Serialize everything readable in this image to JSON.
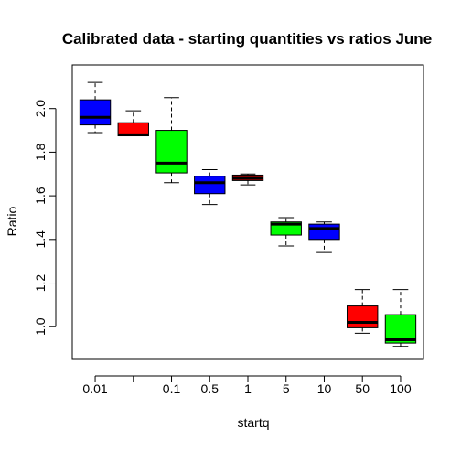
{
  "chart_data": {
    "type": "box",
    "title": "Calibrated data - starting quantities vs ratios June",
    "xlabel": "startq",
    "ylabel": "Ratio",
    "ylim": [
      0.85,
      2.2
    ],
    "yticks": [
      1.0,
      1.2,
      1.4,
      1.6,
      1.8,
      2.0
    ],
    "grid": false,
    "legend": "none",
    "boxes": [
      {
        "label": "0.01",
        "color": "#0000ff",
        "min": 1.89,
        "q1": 1.925,
        "median": 1.96,
        "q3": 2.04,
        "max": 2.12
      },
      {
        "label": "",
        "color": "#ff0000",
        "min": 1.875,
        "q1": 1.875,
        "median": 1.88,
        "q3": 1.935,
        "max": 1.99
      },
      {
        "label": "0.1",
        "color": "#00ff00",
        "min": 1.66,
        "q1": 1.705,
        "median": 1.75,
        "q3": 1.9,
        "max": 2.05
      },
      {
        "label": "0.5",
        "color": "#0000ff",
        "min": 1.56,
        "q1": 1.61,
        "median": 1.66,
        "q3": 1.69,
        "max": 1.72
      },
      {
        "label": "1",
        "color": "#ff0000",
        "min": 1.65,
        "q1": 1.67,
        "median": 1.68,
        "q3": 1.695,
        "max": 1.7
      },
      {
        "label": "5",
        "color": "#00ff00",
        "min": 1.37,
        "q1": 1.42,
        "median": 1.47,
        "q3": 1.48,
        "max": 1.5
      },
      {
        "label": "10",
        "color": "#0000ff",
        "min": 1.34,
        "q1": 1.4,
        "median": 1.45,
        "q3": 1.47,
        "max": 1.48
      },
      {
        "label": "50",
        "color": "#ff0000",
        "min": 0.97,
        "q1": 0.995,
        "median": 1.02,
        "q3": 1.095,
        "max": 1.17
      },
      {
        "label": "100",
        "color": "#00ff00",
        "min": 0.91,
        "q1": 0.925,
        "median": 0.94,
        "q3": 1.055,
        "max": 1.17
      }
    ]
  }
}
